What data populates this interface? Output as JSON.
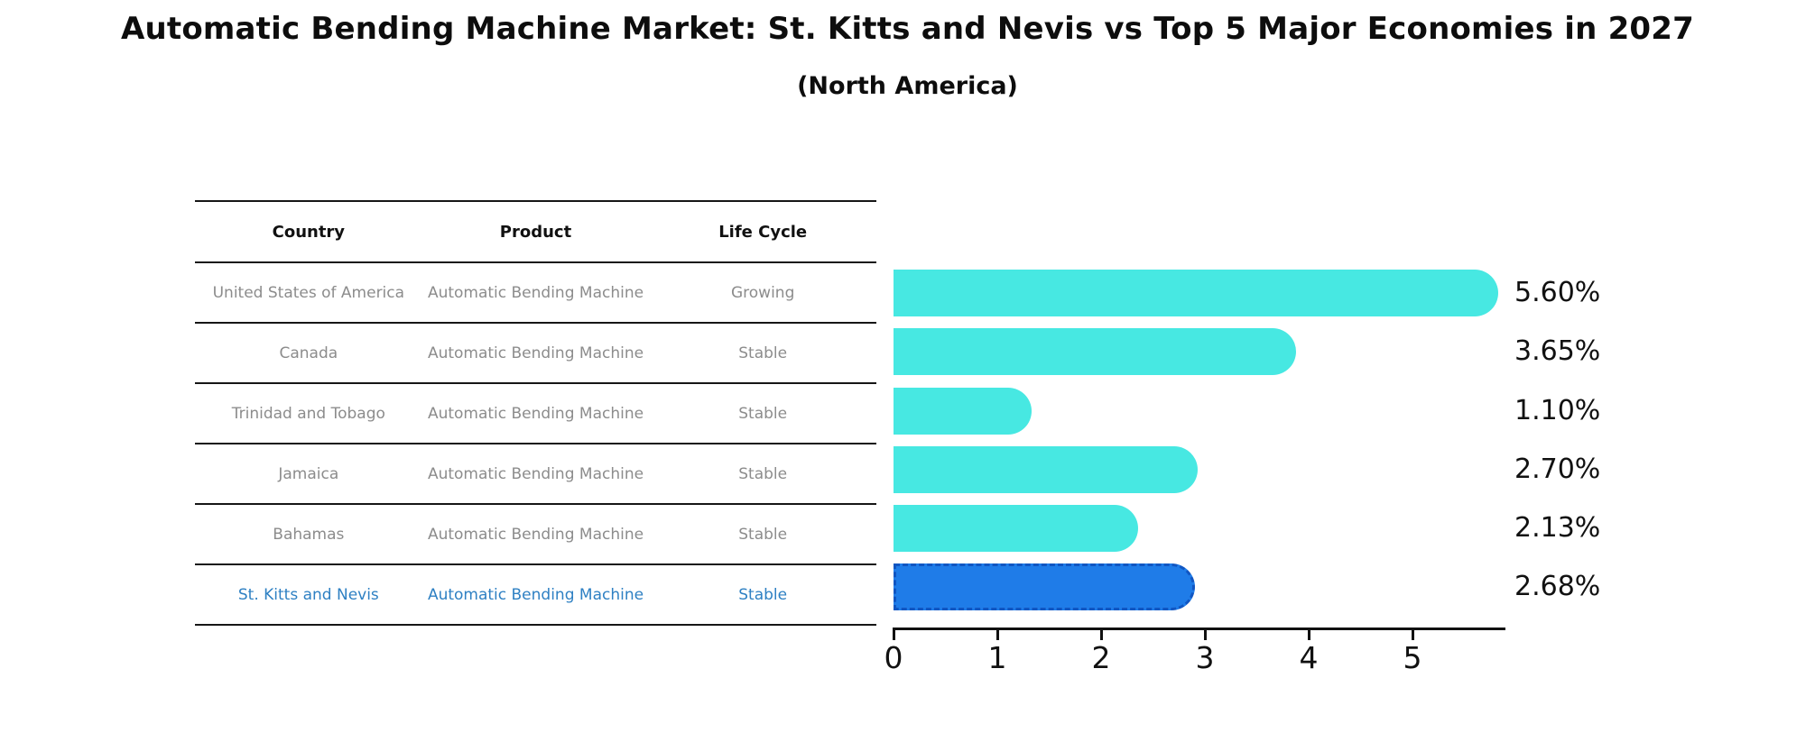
{
  "title": "Automatic Bending Machine Market: St. Kitts and Nevis vs Top 5 Major Economies in 2027",
  "subtitle": "(North America)",
  "table": {
    "headers": {
      "country": "Country",
      "product": "Product",
      "life_cycle": "Life Cycle"
    },
    "rows": [
      {
        "country": "United States of America",
        "product": "Automatic Bending Machine",
        "life_cycle": "Growing"
      },
      {
        "country": "Canada",
        "product": "Automatic Bending Machine",
        "life_cycle": "Stable"
      },
      {
        "country": "Trinidad and Tobago",
        "product": "Automatic Bending Machine",
        "life_cycle": "Stable"
      },
      {
        "country": "Jamaica",
        "product": "Automatic Bending Machine",
        "life_cycle": "Stable"
      },
      {
        "country": "Bahamas",
        "product": "Automatic Bending Machine",
        "life_cycle": "Stable"
      },
      {
        "country": "St. Kitts and Nevis",
        "product": "Automatic Bending Machine",
        "life_cycle": "Stable"
      }
    ],
    "highlight_row_index": 5
  },
  "chart_data": {
    "type": "bar",
    "orientation": "horizontal",
    "categories": [
      "United States of America",
      "Canada",
      "Trinidad and Tobago",
      "Jamaica",
      "Bahamas",
      "St. Kitts and Nevis"
    ],
    "values": [
      5.6,
      3.65,
      1.1,
      2.7,
      2.13,
      2.68
    ],
    "value_labels": {
      "0": "5.60%",
      "1": "3.65%",
      "2": "1.10%",
      "3": "2.70%",
      "4": "2.13%",
      "5": "2.68%"
    },
    "x_ticks": {
      "0": "0",
      "1": "1",
      "2": "2",
      "3": "3",
      "4": "4",
      "5": "5"
    },
    "xlim": [
      0,
      5.88
    ],
    "grid": false,
    "legend": "none",
    "highlight_index": 5
  },
  "colors": {
    "bar": "#47e8e2",
    "highlight_bar": "#1f7ce8",
    "highlight_bar_border": "#1156c2",
    "highlight_text": "#2e80c3",
    "row_text": "#8c8c8c",
    "header_text": "#111111",
    "axis": "#111111",
    "background": "#ffffff"
  }
}
